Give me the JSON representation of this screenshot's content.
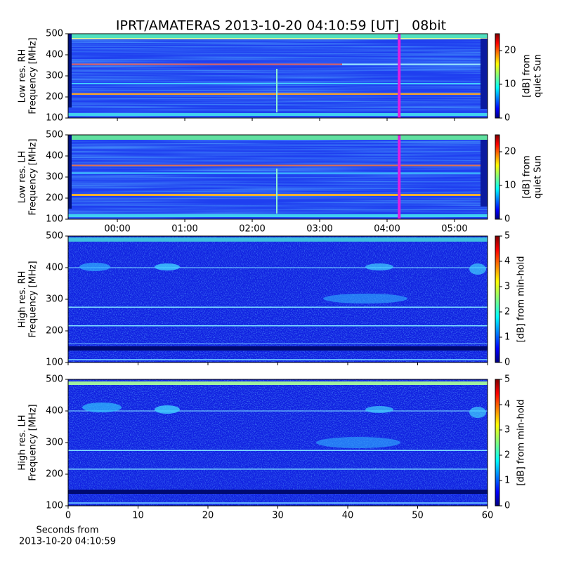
{
  "chart_data": [
    {
      "type": "heatmap",
      "title": "IPRT/AMATERAS 2013-10-20 04:10:59 [UT]   08bit",
      "ylabel": [
        "Low res. RH",
        "Frequency [MHz]"
      ],
      "ylim": [
        100,
        500
      ],
      "yticks": [
        100,
        200,
        300,
        400,
        500
      ],
      "xlim": [
        -0.73,
        5.49
      ],
      "marker_x": 4.18,
      "marker_color": "#e020e0",
      "colorbar": {
        "label": [
          "[dB] from",
          "quiet Sun"
        ],
        "lim": [
          0,
          25
        ],
        "ticks": [
          0,
          10,
          20
        ]
      }
    },
    {
      "type": "heatmap",
      "ylabel": [
        "Low res. LH",
        "Frequency [MHz]"
      ],
      "ylim": [
        100,
        500
      ],
      "yticks": [
        100,
        200,
        300,
        400,
        500
      ],
      "xlim": [
        -0.73,
        5.49
      ],
      "xticks": [
        {
          "value": 0,
          "label": "00:00"
        },
        {
          "value": 1,
          "label": "01:00"
        },
        {
          "value": 2,
          "label": "02:00"
        },
        {
          "value": 3,
          "label": "03:00"
        },
        {
          "value": 4,
          "label": "04:00"
        },
        {
          "value": 5,
          "label": "05:00"
        }
      ],
      "marker_x": 4.18,
      "marker_color": "#e020e0",
      "colorbar": {
        "label": [
          "[dB] from",
          "quiet Sun"
        ],
        "lim": [
          0,
          25
        ],
        "ticks": [
          0,
          10,
          20
        ]
      }
    },
    {
      "type": "heatmap",
      "ylabel": [
        "High res. RH",
        "Frequency [MHz]"
      ],
      "ylim": [
        100,
        500
      ],
      "yticks": [
        100,
        200,
        300,
        400,
        500
      ],
      "xlim": [
        0,
        60
      ],
      "colorbar": {
        "label": [
          "[dB] from min-hold"
        ],
        "lim": [
          0,
          5
        ],
        "ticks": [
          0,
          1,
          2,
          3,
          4,
          5
        ]
      }
    },
    {
      "type": "heatmap",
      "ylabel": [
        "High res. LH",
        "Frequency [MHz]"
      ],
      "ylim": [
        100,
        500
      ],
      "yticks": [
        100,
        200,
        300,
        400,
        500
      ],
      "xlim": [
        0,
        60
      ],
      "xticks": [
        0,
        10,
        20,
        30,
        40,
        50,
        60
      ],
      "xlabel": [
        "Seconds from",
        "2013-10-20 04:10:59"
      ],
      "colorbar": {
        "label": [
          "[dB] from min-hold"
        ],
        "lim": [
          0,
          5
        ],
        "ticks": [
          0,
          1,
          2,
          3,
          4,
          5
        ]
      }
    }
  ]
}
